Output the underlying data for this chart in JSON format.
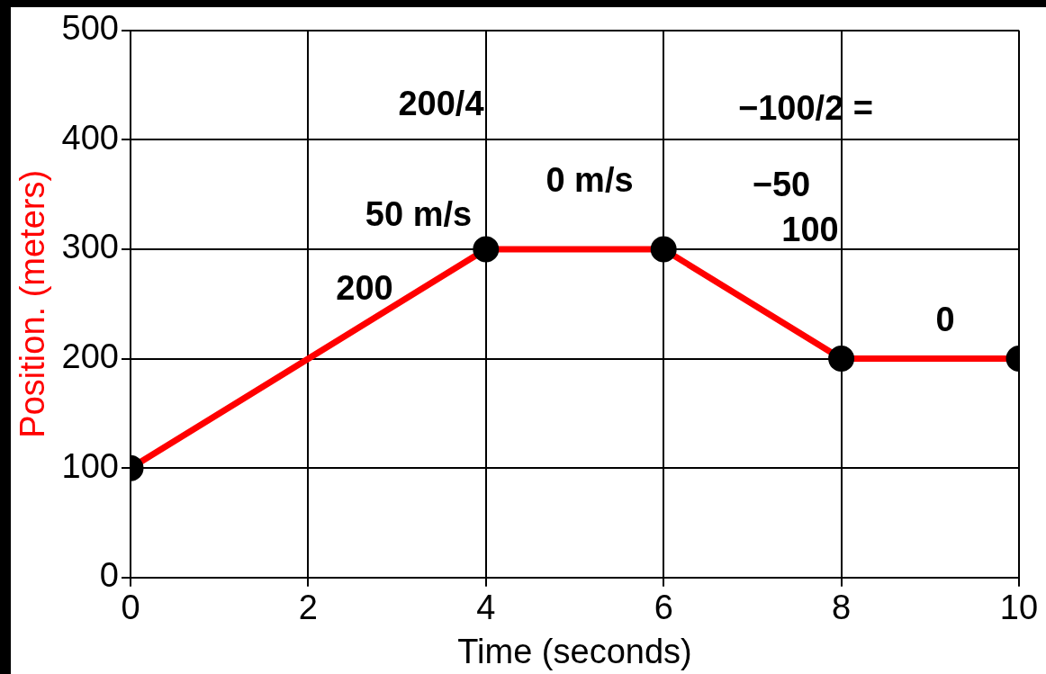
{
  "chart_data": {
    "type": "line",
    "xlabel": "Time (seconds)",
    "ylabel": "Position. (meters)",
    "x": [
      0,
      4,
      6,
      8,
      10
    ],
    "series": [
      {
        "color": "#ff0000",
        "values": [
          100,
          300,
          300,
          200,
          200
        ]
      }
    ],
    "xlim": [
      0,
      10
    ],
    "xticks": [
      0,
      2,
      4,
      6,
      8,
      10
    ],
    "ylim": [
      0,
      500
    ],
    "yticks": [
      0,
      100,
      200,
      300,
      400,
      500
    ],
    "grid": true,
    "legend": false,
    "marker": "circle",
    "line_style": "solid",
    "annotations": [
      "200/4",
      "50 m/s",
      "0 m/s",
      "−100/2 =",
      "−50",
      "200",
      "100",
      "0"
    ]
  }
}
